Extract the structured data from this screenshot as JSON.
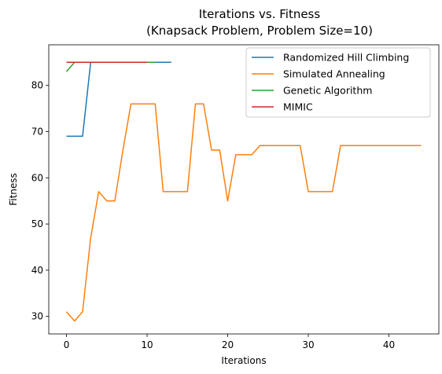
{
  "chart_data": {
    "type": "line",
    "title": "Iterations vs. Fitness",
    "subtitle": "(Knapsack Problem, Problem Size=10)",
    "xlabel": "Iterations",
    "ylabel": "Fitness",
    "xlim": [
      -2.2,
      46.2
    ],
    "ylim": [
      26.2,
      88.8
    ],
    "xticks": [
      0,
      10,
      20,
      30,
      40
    ],
    "yticks": [
      30,
      40,
      50,
      60,
      70,
      80
    ],
    "grid": false,
    "legend_position": "upper right",
    "series": [
      {
        "name": "Randomized Hill Climbing",
        "color": "#1f77b4",
        "x": [
          0,
          1,
          2,
          3,
          4,
          5,
          6,
          7,
          8,
          9,
          10,
          11,
          12,
          13
        ],
        "y": [
          69,
          69,
          69,
          85,
          85,
          85,
          85,
          85,
          85,
          85,
          85,
          85,
          85,
          85
        ]
      },
      {
        "name": "Simulated Annealing",
        "color": "#ff7f0e",
        "x": [
          0,
          1,
          2,
          3,
          4,
          5,
          6,
          7,
          8,
          9,
          10,
          11,
          12,
          13,
          14,
          15,
          16,
          17,
          18,
          19,
          20,
          21,
          22,
          23,
          24,
          25,
          26,
          27,
          28,
          29,
          30,
          31,
          32,
          33,
          34,
          35,
          36,
          37,
          38,
          39,
          40,
          41,
          42,
          43,
          44
        ],
        "y": [
          31,
          29,
          31,
          47,
          57,
          55,
          55,
          66,
          76,
          76,
          76,
          76,
          57,
          57,
          57,
          57,
          76,
          76,
          66,
          66,
          55,
          65,
          65,
          65,
          67,
          67,
          67,
          67,
          67,
          67,
          57,
          57,
          57,
          57,
          67,
          67,
          67,
          67,
          67,
          67,
          67,
          67,
          67,
          67,
          67
        ]
      },
      {
        "name": "Genetic Algorithm",
        "color": "#2ca02c",
        "x": [
          0,
          1,
          2,
          3,
          4,
          5,
          6,
          7,
          8,
          9,
          10,
          11
        ],
        "y": [
          83,
          85,
          85,
          85,
          85,
          85,
          85,
          85,
          85,
          85,
          85,
          85
        ]
      },
      {
        "name": "MIMIC",
        "color": "#d62728",
        "x": [
          0,
          1,
          2,
          3,
          4,
          5,
          6,
          7,
          8,
          9,
          10
        ],
        "y": [
          85,
          85,
          85,
          85,
          85,
          85,
          85,
          85,
          85,
          85,
          85
        ]
      }
    ]
  }
}
